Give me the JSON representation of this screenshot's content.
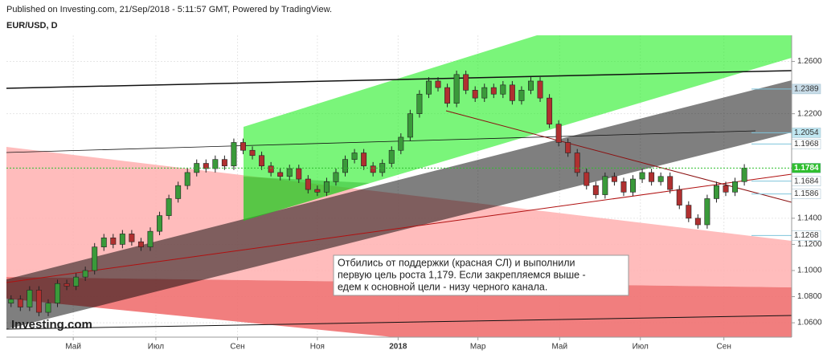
{
  "chart_data": {
    "type": "candlestick",
    "published": "Published on Investing.com, 21/Sep/2018 - 5:11:57 GMT, Powered by TradingView.",
    "title": "EUR/USD, D",
    "logo": "Investing.com",
    "annotation": [
      "Отбились от поддержки (красная СЛ) и выполнили",
      "первую цель роста 1,179. Если закрепляемся выше -",
      "едем к основной цели - низу черного канала."
    ],
    "up_color": "#3a9a3a",
    "down_color": "#b03030",
    "xlim": [
      -0.5,
      84.1
    ],
    "xticks": [
      {
        "value": 6.7,
        "label": "Май"
      },
      {
        "value": 15.6,
        "label": "Июл"
      },
      {
        "value": 24.4,
        "label": "Сен"
      },
      {
        "value": 33,
        "label": "Ноя"
      },
      {
        "value": 41.7,
        "label": "2018"
      },
      {
        "value": 50.3,
        "label": "Мар"
      },
      {
        "value": 59.1,
        "label": "Май"
      },
      {
        "value": 67.8,
        "label": "Июл"
      },
      {
        "value": 76.8,
        "label": "Сен"
      }
    ],
    "ylim": [
      1.049,
      1.28
    ],
    "yticks": [
      {
        "value": 1.06,
        "label": "1.0600"
      },
      {
        "value": 1.08,
        "label": "1.0800"
      },
      {
        "value": 1.1,
        "label": "1.1000"
      },
      {
        "value": 1.12,
        "label": "1.1200"
      },
      {
        "value": 1.14,
        "label": "1.1400"
      },
      {
        "value": 1.22,
        "label": "1.2200"
      },
      {
        "value": 1.26,
        "label": "1.2600"
      }
    ],
    "price_tags": [
      {
        "value": 1.2389,
        "color": "#c8dce8"
      },
      {
        "value": 1.2054,
        "color": "#bfe6f0"
      },
      {
        "value": 1.1968,
        "color": "#ffffff"
      },
      {
        "value": 1.1784,
        "color": "#2fbf2f"
      },
      {
        "value": 1.1684,
        "color": "#ffffff"
      },
      {
        "value": 1.1586,
        "color": "#ffffff"
      },
      {
        "value": 1.1268,
        "color": "#ffffff"
      }
    ],
    "candles": [
      [
        1.075,
        1.081,
        1.072,
        1.078
      ],
      [
        1.078,
        1.081,
        1.069,
        1.072
      ],
      [
        1.072,
        1.088,
        1.069,
        1.085
      ],
      [
        1.085,
        1.088,
        1.065,
        1.068
      ],
      [
        1.068,
        1.078,
        1.065,
        1.075
      ],
      [
        1.075,
        1.093,
        1.072,
        1.09
      ],
      [
        1.09,
        1.093,
        1.085,
        1.088
      ],
      [
        1.088,
        1.098,
        1.085,
        1.095
      ],
      [
        1.095,
        1.103,
        1.092,
        1.1
      ],
      [
        1.1,
        1.121,
        1.097,
        1.118
      ],
      [
        1.118,
        1.128,
        1.115,
        1.125
      ],
      [
        1.125,
        1.128,
        1.117,
        1.12
      ],
      [
        1.12,
        1.131,
        1.117,
        1.128
      ],
      [
        1.128,
        1.131,
        1.119,
        1.122
      ],
      [
        1.122,
        1.125,
        1.115,
        1.118
      ],
      [
        1.118,
        1.133,
        1.115,
        1.13
      ],
      [
        1.13,
        1.145,
        1.127,
        1.142
      ],
      [
        1.142,
        1.158,
        1.139,
        1.155
      ],
      [
        1.155,
        1.168,
        1.152,
        1.165
      ],
      [
        1.165,
        1.178,
        1.162,
        1.175
      ],
      [
        1.175,
        1.185,
        1.172,
        1.182
      ],
      [
        1.182,
        1.185,
        1.175,
        1.178
      ],
      [
        1.178,
        1.188,
        1.175,
        1.185
      ],
      [
        1.185,
        1.188,
        1.177,
        1.18
      ],
      [
        1.18,
        1.201,
        1.177,
        1.198
      ],
      [
        1.198,
        1.201,
        1.189,
        1.192
      ],
      [
        1.192,
        1.195,
        1.185,
        1.188
      ],
      [
        1.188,
        1.191,
        1.177,
        1.18
      ],
      [
        1.18,
        1.183,
        1.172,
        1.175
      ],
      [
        1.175,
        1.178,
        1.169,
        1.172
      ],
      [
        1.172,
        1.181,
        1.169,
        1.178
      ],
      [
        1.178,
        1.181,
        1.167,
        1.17
      ],
      [
        1.17,
        1.173,
        1.159,
        1.162
      ],
      [
        1.162,
        1.165,
        1.157,
        1.16
      ],
      [
        1.16,
        1.171,
        1.157,
        1.168
      ],
      [
        1.168,
        1.178,
        1.165,
        1.175
      ],
      [
        1.175,
        1.188,
        1.172,
        1.185
      ],
      [
        1.185,
        1.193,
        1.182,
        1.19
      ],
      [
        1.19,
        1.193,
        1.177,
        1.18
      ],
      [
        1.18,
        1.183,
        1.172,
        1.175
      ],
      [
        1.175,
        1.185,
        1.172,
        1.182
      ],
      [
        1.182,
        1.195,
        1.179,
        1.192
      ],
      [
        1.192,
        1.205,
        1.189,
        1.202
      ],
      [
        1.202,
        1.223,
        1.199,
        1.22
      ],
      [
        1.22,
        1.238,
        1.217,
        1.235
      ],
      [
        1.235,
        1.248,
        1.232,
        1.245
      ],
      [
        1.245,
        1.248,
        1.237,
        1.24
      ],
      [
        1.24,
        1.243,
        1.225,
        1.228
      ],
      [
        1.228,
        1.253,
        1.225,
        1.25
      ],
      [
        1.25,
        1.253,
        1.235,
        1.238
      ],
      [
        1.238,
        1.241,
        1.229,
        1.232
      ],
      [
        1.232,
        1.243,
        1.229,
        1.24
      ],
      [
        1.24,
        1.243,
        1.232,
        1.235
      ],
      [
        1.235,
        1.245,
        1.232,
        1.242
      ],
      [
        1.242,
        1.245,
        1.227,
        1.23
      ],
      [
        1.23,
        1.241,
        1.227,
        1.238
      ],
      [
        1.238,
        1.248,
        1.235,
        1.245
      ],
      [
        1.245,
        1.248,
        1.229,
        1.232
      ],
      [
        1.232,
        1.235,
        1.209,
        1.212
      ],
      [
        1.212,
        1.215,
        1.195,
        1.198
      ],
      [
        1.198,
        1.201,
        1.187,
        1.19
      ],
      [
        1.19,
        1.193,
        1.172,
        1.175
      ],
      [
        1.175,
        1.178,
        1.162,
        1.165
      ],
      [
        1.165,
        1.168,
        1.155,
        1.158
      ],
      [
        1.158,
        1.175,
        1.155,
        1.172
      ],
      [
        1.172,
        1.175,
        1.165,
        1.168
      ],
      [
        1.168,
        1.171,
        1.157,
        1.16
      ],
      [
        1.16,
        1.173,
        1.157,
        1.17
      ],
      [
        1.17,
        1.178,
        1.167,
        1.175
      ],
      [
        1.175,
        1.178,
        1.165,
        1.168
      ],
      [
        1.168,
        1.175,
        1.165,
        1.172
      ],
      [
        1.172,
        1.175,
        1.159,
        1.162
      ],
      [
        1.162,
        1.165,
        1.147,
        1.15
      ],
      [
        1.15,
        1.153,
        1.137,
        1.14
      ],
      [
        1.14,
        1.143,
        1.132,
        1.135
      ],
      [
        1.135,
        1.158,
        1.132,
        1.155
      ],
      [
        1.155,
        1.168,
        1.152,
        1.165
      ],
      [
        1.165,
        1.168,
        1.157,
        1.16
      ],
      [
        1.16,
        1.171,
        1.157,
        1.168
      ],
      [
        1.168,
        1.1814,
        1.165,
        1.1784
      ]
    ]
  }
}
